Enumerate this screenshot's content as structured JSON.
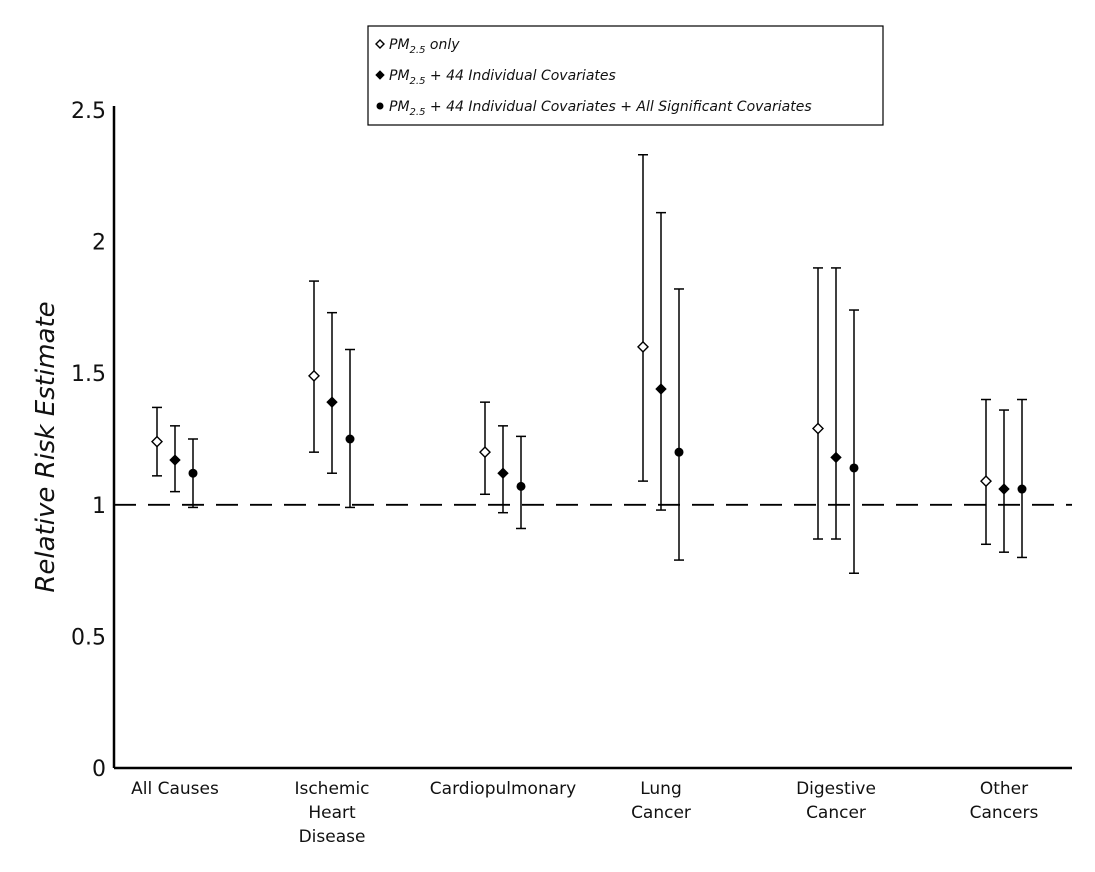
{
  "chart_data": {
    "type": "scatter",
    "subtype": "error-bar",
    "title": "",
    "xlabel": "",
    "ylabel": "Relative Risk Estimate",
    "ylim": [
      0,
      2.5
    ],
    "yticks": [
      "0",
      "0.5",
      "1",
      "1.5",
      "2",
      "2.5"
    ],
    "reference_line": {
      "y": 1,
      "style": "dashed"
    },
    "grid": false,
    "legend_position": "top-center",
    "categories": [
      {
        "lines": [
          "All Causes"
        ]
      },
      {
        "lines": [
          "Ischemic",
          "Heart",
          "Disease"
        ]
      },
      {
        "lines": [
          "Cardiopulmonary"
        ]
      },
      {
        "lines": [
          "Lung",
          "Cancer"
        ]
      },
      {
        "lines": [
          "Digestive",
          "Cancer"
        ]
      },
      {
        "lines": [
          "Other",
          "Cancers"
        ]
      }
    ],
    "series": [
      {
        "name": {
          "pre": "PM",
          "sub": "2.5",
          "post": " only"
        },
        "marker": "open-diamond",
        "values": [
          1.24,
          1.49,
          1.2,
          1.6,
          1.29,
          1.09
        ],
        "lower": [
          1.11,
          1.2,
          1.04,
          1.09,
          0.87,
          0.85
        ],
        "upper": [
          1.37,
          1.85,
          1.39,
          2.33,
          1.9,
          1.4
        ]
      },
      {
        "name": {
          "pre": "PM",
          "sub": "2.5",
          "post": " + 44 Individual Covariates"
        },
        "marker": "filled-diamond",
        "values": [
          1.17,
          1.39,
          1.12,
          1.44,
          1.18,
          1.06
        ],
        "lower": [
          1.05,
          1.12,
          0.97,
          0.98,
          0.87,
          0.82
        ],
        "upper": [
          1.3,
          1.73,
          1.3,
          2.11,
          1.9,
          1.36
        ]
      },
      {
        "name": {
          "pre": "PM",
          "sub": "2.5",
          "post": " + 44 Individual Covariates + All Significant Covariates"
        },
        "marker": "filled-circle",
        "values": [
          1.12,
          1.25,
          1.07,
          1.2,
          1.14,
          1.06
        ],
        "lower": [
          0.99,
          0.99,
          0.91,
          0.79,
          0.74,
          0.8
        ],
        "upper": [
          1.25,
          1.59,
          1.26,
          1.82,
          1.74,
          1.4
        ]
      }
    ]
  }
}
